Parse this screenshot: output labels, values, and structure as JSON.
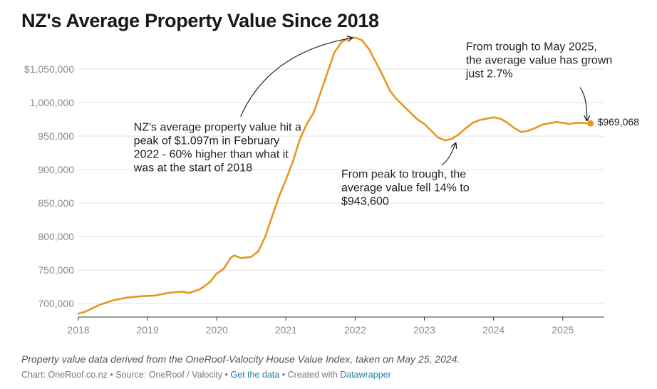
{
  "title": "NZ's Average Property Value Since 2018",
  "notes": "Property value data derived from the OneRoof-Valocity House Value Index, taken on May 25, 2024.",
  "footer": {
    "chart_by": "Chart: OneRoof.co.nz",
    "source": "Source: OneRoof / Valocity",
    "get_data": "Get the data",
    "created_with": "Created with",
    "tool": "Datawrapper",
    "sep": " • "
  },
  "colors": {
    "line": "#e8961e",
    "grid": "#e2e2e2",
    "axis": "#333333",
    "text": "#222222"
  },
  "chart_data": {
    "type": "line",
    "title": "NZ's Average Property Value Since 2018",
    "xlabel": "",
    "ylabel": "",
    "xlim": [
      2018,
      2025.6
    ],
    "ylim": [
      680000,
      1100000
    ],
    "x_ticks": [
      2018,
      2019,
      2020,
      2021,
      2022,
      2023,
      2024,
      2025
    ],
    "x_tick_labels": [
      "2018",
      "2019",
      "2020",
      "2021",
      "2022",
      "2023",
      "2024",
      "2025"
    ],
    "y_ticks": [
      700000,
      750000,
      800000,
      850000,
      900000,
      950000,
      1000000,
      1050000
    ],
    "y_tick_labels": [
      "700,000",
      "750,000",
      "800,000",
      "850,000",
      "900,000",
      "950,000",
      "1,000,000",
      "$1,050,000"
    ],
    "grid": true,
    "series": [
      {
        "x": [
          2018.0,
          2018.1,
          2018.2,
          2018.3,
          2018.5,
          2018.7,
          2018.9,
          2019.1,
          2019.3,
          2019.5,
          2019.6,
          2019.75,
          2019.9,
          2020.0,
          2020.1,
          2020.2,
          2020.25,
          2020.35,
          2020.5,
          2020.6,
          2020.7,
          2020.8,
          2020.9,
          2021.0,
          2021.1,
          2021.2,
          2021.3,
          2021.4,
          2021.5,
          2021.6,
          2021.7,
          2021.8,
          2021.9,
          2022.0,
          2022.1,
          2022.2,
          2022.3,
          2022.4,
          2022.5,
          2022.6,
          2022.7,
          2022.8,
          2022.9,
          2023.0,
          2023.1,
          2023.2,
          2023.3,
          2023.4,
          2023.5,
          2023.6,
          2023.7,
          2023.8,
          2023.9,
          2024.0,
          2024.1,
          2024.2,
          2024.3,
          2024.4,
          2024.5,
          2024.6,
          2024.7,
          2024.8,
          2024.9,
          2025.0,
          2025.1,
          2025.2,
          2025.3,
          2025.4
        ],
        "values": [
          685000,
          688000,
          693000,
          698000,
          705000,
          709000,
          711000,
          712000,
          716000,
          718000,
          716000,
          721000,
          732000,
          745000,
          752000,
          768000,
          772000,
          768000,
          770000,
          778000,
          800000,
          830000,
          860000,
          885000,
          912000,
          945000,
          968000,
          985000,
          1015000,
          1045000,
          1075000,
          1090000,
          1096000,
          1097000,
          1093000,
          1080000,
          1060000,
          1040000,
          1018000,
          1005000,
          995000,
          985000,
          975000,
          968000,
          958000,
          948000,
          943600,
          946000,
          953000,
          962000,
          970000,
          974000,
          976000,
          978000,
          976000,
          970000,
          962000,
          956000,
          958000,
          962000,
          967000,
          969000,
          971000,
          970000,
          968000,
          970000,
          969500,
          969068
        ]
      }
    ],
    "end_label": "$969,068",
    "annotations": [
      {
        "lines": [
          "NZ's average property value hit a",
          "peak of $1.097m in February",
          "2022 - 60% higher than what it",
          "was at the start of 2018"
        ],
        "x": 2018.8,
        "y": 958000,
        "arrow_to": [
          2021.95,
          1096500
        ]
      },
      {
        "lines": [
          "From peak to trough, the",
          "average value fell 14% to",
          "$943,600"
        ],
        "x": 2021.8,
        "y": 888000,
        "arrow_to": [
          2023.45,
          939000
        ]
      },
      {
        "lines": [
          "From trough to May 2025,",
          "the average value has grown",
          "just 2.7%"
        ],
        "x": 2023.6,
        "y": 1078000,
        "arrow_to": [
          2025.35,
          974000
        ]
      }
    ]
  }
}
